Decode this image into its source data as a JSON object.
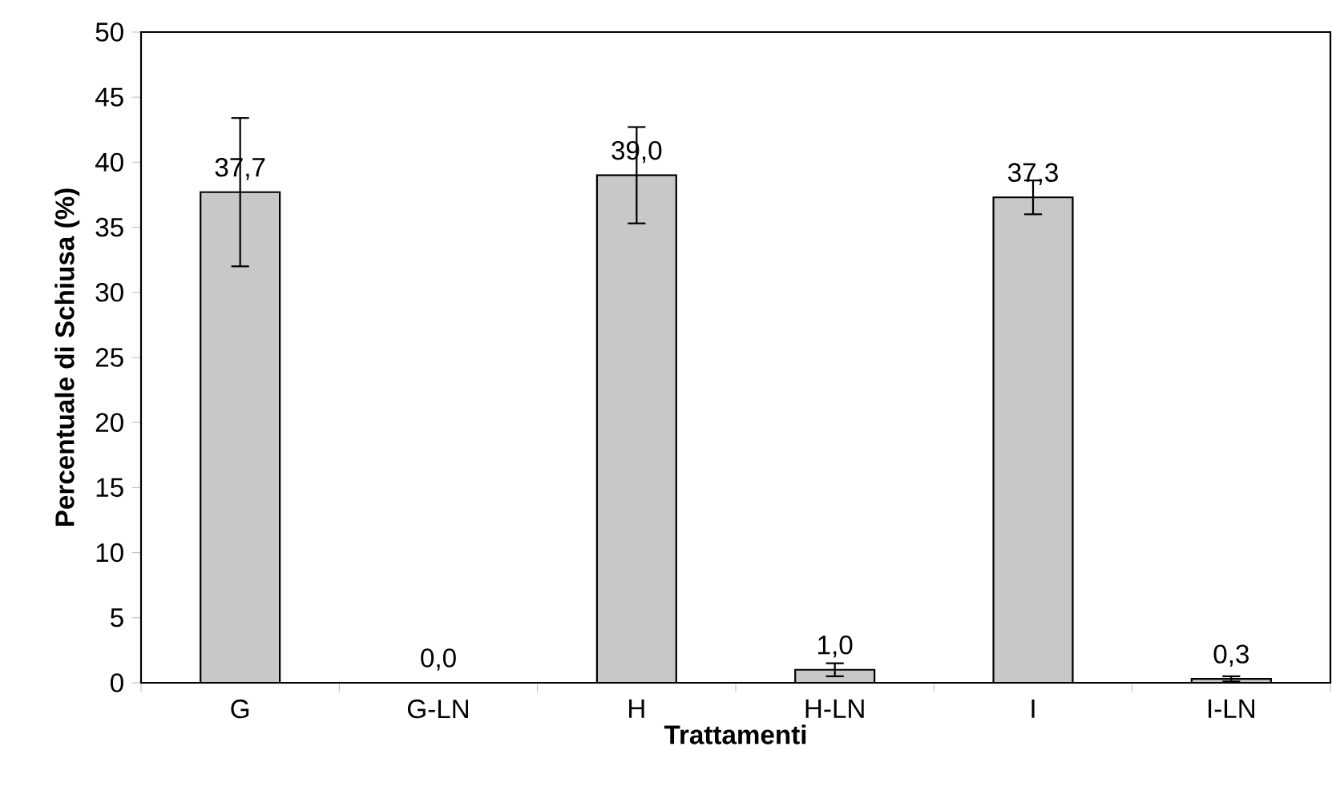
{
  "chart_data": {
    "type": "bar",
    "xlabel": "Trattamenti",
    "ylabel": "Percentuale di Schiusa (%)",
    "categories": [
      "G",
      "G-LN",
      "H",
      "H-LN",
      "I",
      "I-LN"
    ],
    "values": [
      37.7,
      0.0,
      39.0,
      1.0,
      37.3,
      0.3
    ],
    "value_labels": [
      "37,7",
      "0,0",
      "39,0",
      "1,0",
      "37,3",
      "0,3"
    ],
    "errors": [
      5.7,
      null,
      3.7,
      0.5,
      1.3,
      0.2
    ],
    "color": "#c8c8c8",
    "ylim": [
      0,
      50
    ],
    "yticks": [
      0,
      5,
      10,
      15,
      20,
      25,
      30,
      35,
      40,
      45,
      50
    ]
  }
}
